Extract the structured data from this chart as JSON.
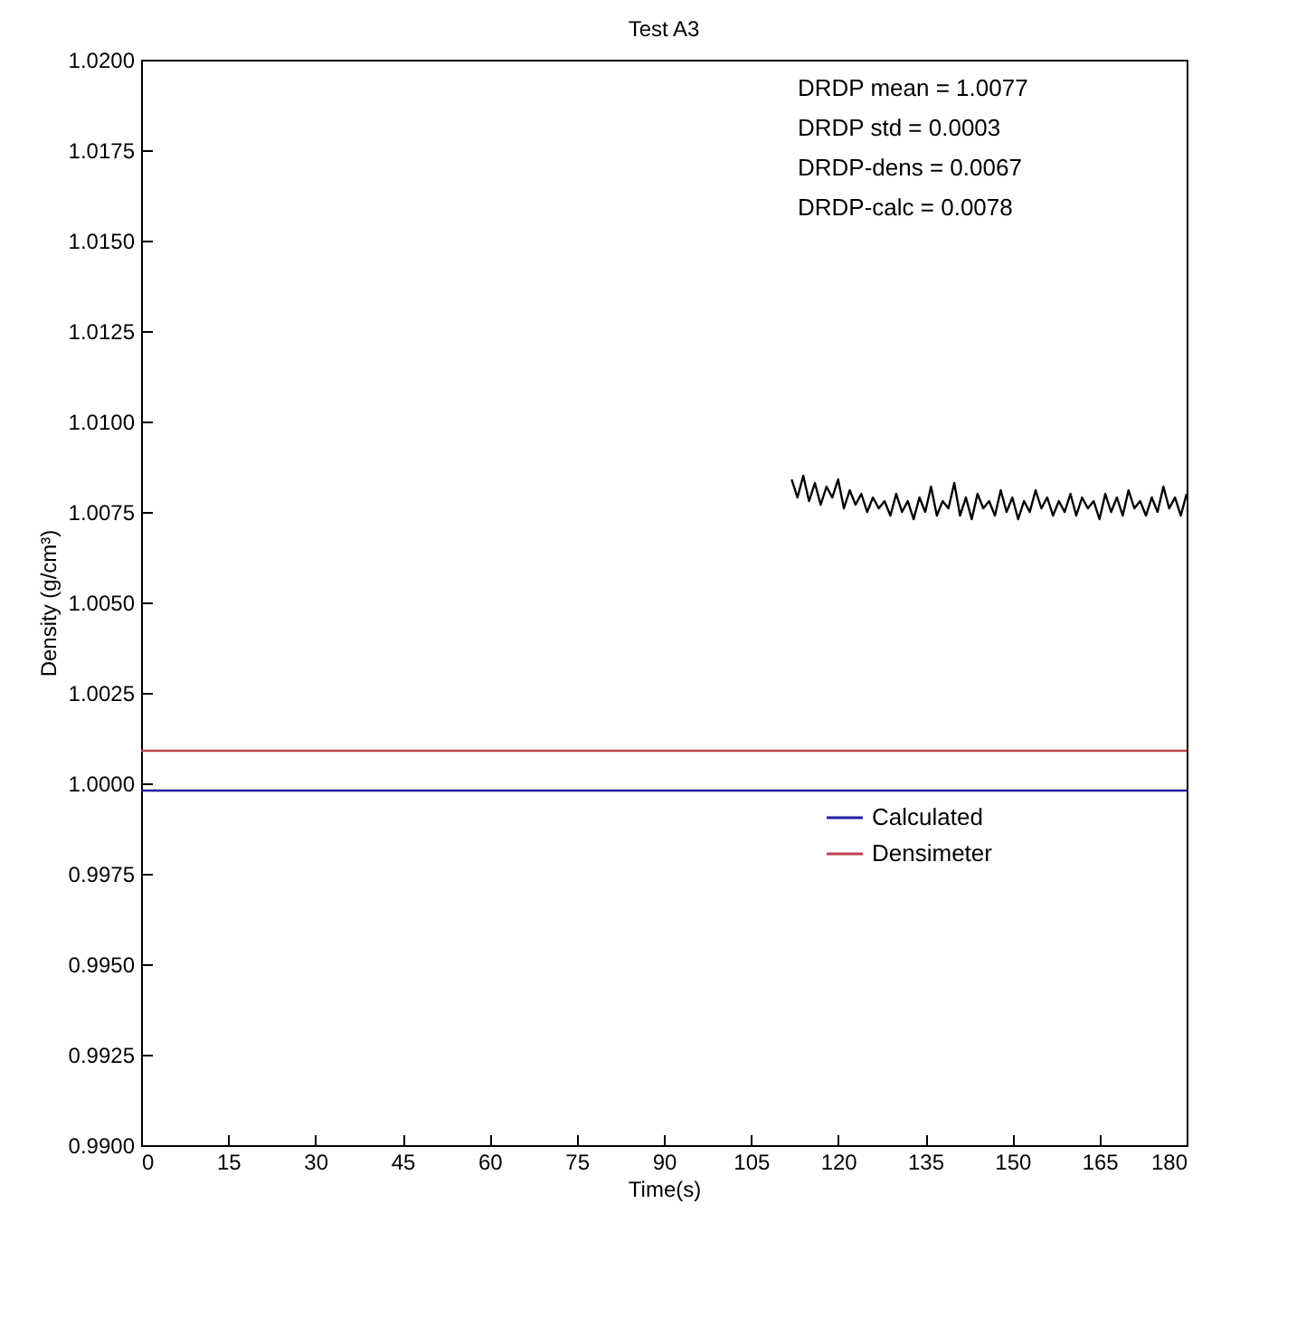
{
  "chart_data": {
    "type": "line",
    "title": "Test A3",
    "xlabel": "Time(s)",
    "ylabel": "Density (g/cm³)",
    "xlim": [
      0,
      180
    ],
    "xticks": [
      0,
      15,
      30,
      45,
      60,
      75,
      90,
      105,
      120,
      135,
      150,
      165,
      180
    ],
    "ylim": [
      0.99,
      1.02
    ],
    "yticks": [
      {
        "value": 0.99,
        "label": "0.9900"
      },
      {
        "value": 0.9925,
        "label": "0.9925"
      },
      {
        "value": 0.995,
        "label": "0.9950"
      },
      {
        "value": 0.9975,
        "label": "0.9975"
      },
      {
        "value": 1.0,
        "label": "1.0000"
      },
      {
        "value": 1.0025,
        "label": "1.0025"
      },
      {
        "value": 1.005,
        "label": "1.0050"
      },
      {
        "value": 1.0075,
        "label": "1.0075"
      },
      {
        "value": 1.01,
        "label": "1.0100"
      },
      {
        "value": 1.0125,
        "label": "1.0125"
      },
      {
        "value": 1.015,
        "label": "1.0150"
      },
      {
        "value": 1.0175,
        "label": "1.0175"
      },
      {
        "value": 1.02,
        "label": "1.0200"
      }
    ],
    "series": [
      {
        "color": "#000000",
        "x": [
          112,
          113,
          114,
          115,
          116,
          117,
          118,
          119,
          120,
          121,
          122,
          123,
          124,
          125,
          126,
          127,
          128,
          129,
          130,
          131,
          132,
          133,
          134,
          135,
          136,
          137,
          138,
          139,
          140,
          141,
          142,
          143,
          144,
          145,
          146,
          147,
          148,
          149,
          150,
          151,
          152,
          153,
          154,
          155,
          156,
          157,
          158,
          159,
          160,
          161,
          162,
          163,
          164,
          165,
          166,
          167,
          168,
          169,
          170,
          171,
          172,
          173,
          174,
          175,
          176,
          177,
          178,
          179,
          180
        ],
        "values": [
          1.0084,
          1.0079,
          1.0085,
          1.0078,
          1.0083,
          1.0077,
          1.0082,
          1.0079,
          1.0084,
          1.0076,
          1.0081,
          1.0077,
          1.008,
          1.0075,
          1.0079,
          1.0076,
          1.0078,
          1.0074,
          1.008,
          1.0075,
          1.0078,
          1.0073,
          1.0079,
          1.0075,
          1.0082,
          1.0074,
          1.0078,
          1.0076,
          1.0083,
          1.0074,
          1.0079,
          1.0073,
          1.008,
          1.0076,
          1.0078,
          1.0074,
          1.0081,
          1.0075,
          1.0079,
          1.0073,
          1.0078,
          1.0075,
          1.0081,
          1.0076,
          1.0079,
          1.0074,
          1.0078,
          1.0075,
          1.008,
          1.0074,
          1.0079,
          1.0076,
          1.0078,
          1.0073,
          1.008,
          1.0075,
          1.0079,
          1.0074,
          1.0081,
          1.0076,
          1.0078,
          1.0074,
          1.0079,
          1.0075,
          1.0082,
          1.0076,
          1.0079,
          1.0074,
          1.008
        ]
      },
      {
        "name": "Calculated",
        "color": "#2020a0",
        "x": [
          0,
          180
        ],
        "values": [
          0.9998,
          0.9998
        ]
      },
      {
        "name": "Densimeter",
        "color": "#c04050",
        "x": [
          0,
          180
        ],
        "values": [
          1.0009,
          1.0009
        ]
      }
    ],
    "annotations": [
      "DRDP mean = 1.0077",
      "DRDP std = 0.0003",
      "DRDP-dens = 0.0067",
      "DRDP-calc = 0.0078"
    ],
    "legend": "right",
    "grid": false
  }
}
